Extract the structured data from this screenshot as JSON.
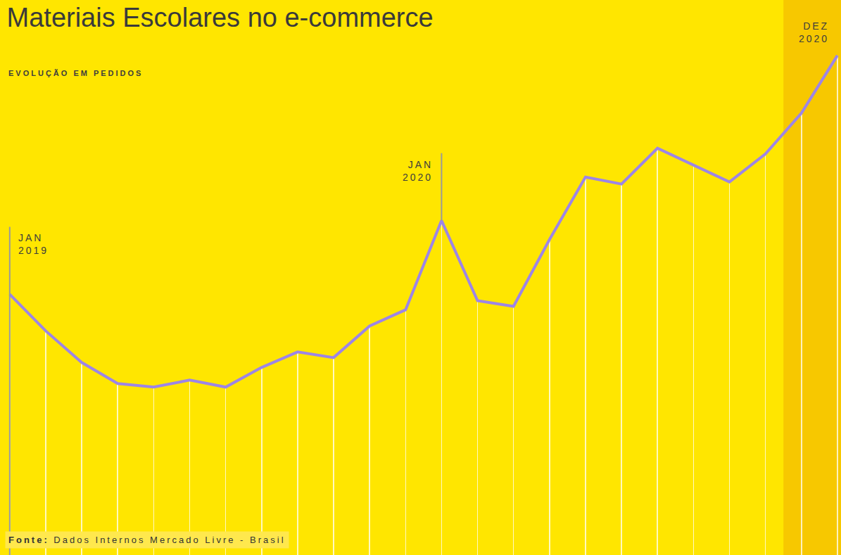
{
  "chart_data": {
    "type": "line",
    "title": "Materiais Escolares no e-commerce",
    "subtitle": "EVOLUÇÃO EM PEDIDOS",
    "source": "Fonte: Dados Internos Mercado Livre - Brasil",
    "categories": [
      "JAN 2019",
      null,
      null,
      null,
      null,
      null,
      null,
      null,
      null,
      null,
      null,
      null,
      "JAN 2020",
      null,
      null,
      null,
      null,
      null,
      null,
      null,
      null,
      null,
      null,
      "DEZ 2020"
    ],
    "values": [
      371,
      319,
      274,
      244,
      239,
      249,
      239,
      267,
      289,
      281,
      326,
      349,
      476,
      362,
      354,
      449,
      538,
      528,
      579,
      555,
      531,
      571,
      629,
      711
    ],
    "color": "#9d85e6",
    "ylim": [
      0,
      790
    ],
    "grid": true,
    "tick_labels": false
  }
}
